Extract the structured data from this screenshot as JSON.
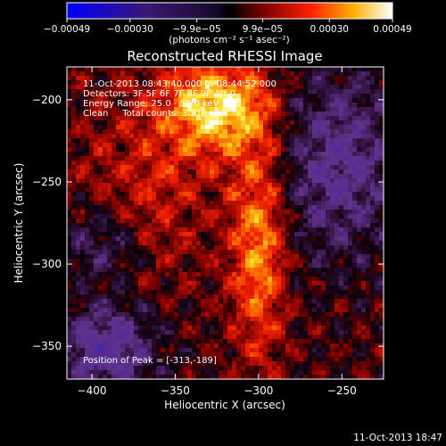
{
  "chart_data": {
    "type": "heatmap",
    "title": "Reconstructed RHESSI Image",
    "xlabel": "Heliocentric X (arcsec)",
    "ylabel": "Heliocentric Y (arcsec)",
    "xlim": [
      -415,
      -225
    ],
    "ylim": [
      -370,
      -180
    ],
    "x_ticks": [
      {
        "value": -400,
        "label": "−400"
      },
      {
        "value": -350,
        "label": "−350"
      },
      {
        "value": -300,
        "label": "−300"
      },
      {
        "value": -250,
        "label": "−250"
      }
    ],
    "y_ticks": [
      {
        "value": -350,
        "label": "−350"
      },
      {
        "value": -300,
        "label": "−300"
      },
      {
        "value": -250,
        "label": "−250"
      },
      {
        "value": -200,
        "label": "−200"
      }
    ],
    "colorbar": {
      "min": -0.00049,
      "max": 0.00049,
      "ticks": [
        {
          "value": -0.00049,
          "label": "−0.00049"
        },
        {
          "value": -0.0003,
          "label": "−0.00030"
        },
        {
          "value": -9.9e-05,
          "label": "−9.9e−05"
        },
        {
          "value": 9.9e-05,
          "label": "9.9e−05"
        },
        {
          "value": 0.0003,
          "label": "0.00030"
        },
        {
          "value": 0.00049,
          "label": "0.00049"
        }
      ],
      "unit_label": "(photons cm⁻² s⁻¹ asec⁻²)"
    },
    "annotations": [
      "11-Oct-2013 08:43:40.000 to 08:44:52.000",
      "Detectors: 3F 5F 6F 7F 8F 9F  Att 0",
      "Energy Range: 25.0 - 50.0 keV",
      "Clean     Total counts: 3.21e+03",
      "Position of Peak = [-313,-189]"
    ],
    "peak": {
      "x": -313,
      "y": -189
    },
    "colormap": "black-purple-red-yellow-white",
    "grid": false
  },
  "footer_timestamp": "11-Oct-2013 18:47"
}
